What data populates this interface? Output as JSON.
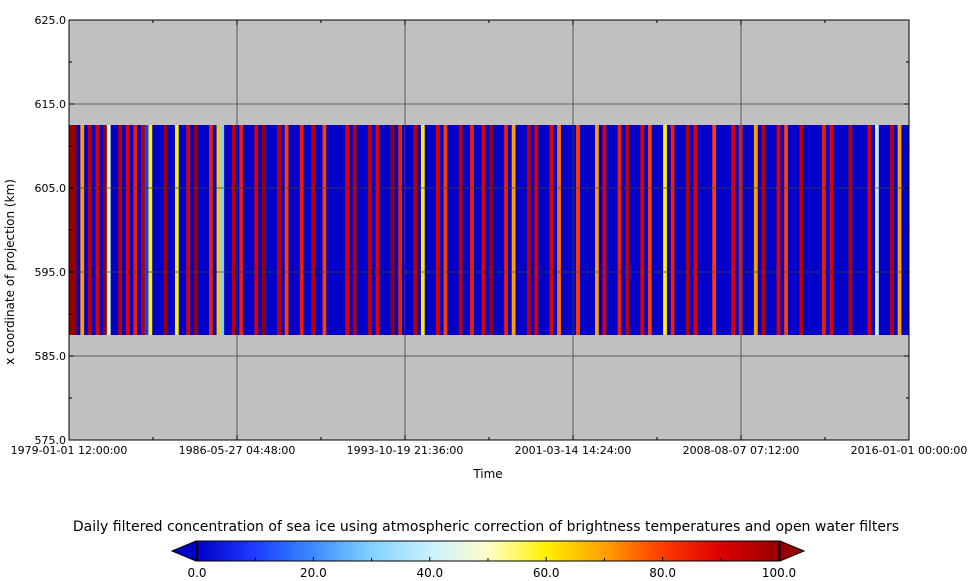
{
  "chart_data": {
    "type": "heatmap",
    "title": "",
    "xlabel": "Time",
    "ylabel": "x coordinate of projection (km)",
    "x_tick_labels": [
      "1979-01-01 12:00:00",
      "1986-05-27 04:48:00",
      "1993-10-19 21:36:00",
      "2001-03-14 14:24:00",
      "2008-08-07 07:12:00",
      "2016-01-01 00:00:00"
    ],
    "y_tick_labels": [
      "575.0",
      "585.0",
      "595.0",
      "605.0",
      "615.0",
      "625.0"
    ],
    "xlim": [
      "1979-01-01 12:00:00",
      "2016-01-01 00:00:00"
    ],
    "ylim": [
      575.0,
      625.0
    ],
    "data_extent_y": [
      587.5,
      612.5
    ],
    "grid": true,
    "background_color": "#c0c0c0",
    "colorbar": {
      "title": "Daily filtered concentration of sea ice using atmospheric correction of brightness temperatures and open water filters",
      "tick_labels": [
        "0.0",
        "20.0",
        "40.0",
        "60.0",
        "80.0",
        "100.0"
      ],
      "range": [
        0.0,
        100.0
      ],
      "extend": "both",
      "colors": [
        "#0000c8",
        "#1e3cff",
        "#3c8cff",
        "#82d2ff",
        "#c8f0ff",
        "#ffffc8",
        "#fff000",
        "#ffa000",
        "#ff3c00",
        "#dc0000",
        "#960000"
      ]
    },
    "approximate_yearly_concentration": [
      {
        "year": 1979,
        "pattern": [
          100,
          100,
          0,
          70,
          0,
          95
        ]
      },
      {
        "year": 1980,
        "pattern": [
          0,
          90,
          0,
          100,
          45,
          0
        ]
      },
      {
        "year": 1981,
        "pattern": [
          0,
          95,
          0,
          90,
          0,
          85
        ]
      },
      {
        "year": 1982,
        "pattern": [
          0,
          95,
          10,
          60,
          0,
          0
        ]
      },
      {
        "year": 1983,
        "pattern": [
          0,
          100,
          0,
          0,
          60,
          0
        ]
      },
      {
        "year": 1984,
        "pattern": [
          0,
          90,
          0,
          100,
          0,
          0
        ]
      },
      {
        "year": 1985,
        "pattern": [
          0,
          85,
          0,
          65,
          30,
          0
        ]
      },
      {
        "year": 1986,
        "pattern": [
          0,
          95,
          0,
          85,
          0,
          0
        ]
      },
      {
        "year": 1987,
        "pattern": [
          0,
          90,
          0,
          100,
          0,
          0
        ]
      },
      {
        "year": 1988,
        "pattern": [
          0,
          95,
          0,
          80,
          0,
          0
        ]
      },
      {
        "year": 1989,
        "pattern": [
          0,
          85,
          0,
          0,
          95,
          0
        ]
      },
      {
        "year": 1990,
        "pattern": [
          0,
          80,
          0,
          0,
          0,
          0
        ]
      },
      {
        "year": 1991,
        "pattern": [
          0,
          90,
          0,
          95,
          0,
          0
        ]
      },
      {
        "year": 1992,
        "pattern": [
          0,
          95,
          0,
          90,
          0,
          0
        ]
      },
      {
        "year": 1993,
        "pattern": [
          0,
          100,
          0,
          85,
          0,
          0
        ]
      },
      {
        "year": 1994,
        "pattern": [
          0,
          95,
          0,
          60,
          0,
          0
        ]
      },
      {
        "year": 1995,
        "pattern": [
          0,
          90,
          0,
          80,
          0,
          0
        ]
      },
      {
        "year": 1996,
        "pattern": [
          0,
          95,
          0,
          0,
          85,
          0
        ]
      },
      {
        "year": 1997,
        "pattern": [
          0,
          90,
          0,
          100,
          0,
          0
        ]
      },
      {
        "year": 1998,
        "pattern": [
          0,
          85,
          0,
          70,
          0,
          0
        ]
      },
      {
        "year": 1999,
        "pattern": [
          0,
          95,
          0,
          90,
          0,
          0
        ]
      },
      {
        "year": 2000,
        "pattern": [
          0,
          90,
          0,
          75,
          0,
          0
        ]
      },
      {
        "year": 2001,
        "pattern": [
          0,
          0,
          80,
          0,
          0,
          0
        ]
      },
      {
        "year": 2002,
        "pattern": [
          0,
          70,
          0,
          90,
          0,
          0
        ]
      },
      {
        "year": 2003,
        "pattern": [
          0,
          85,
          0,
          95,
          0,
          0
        ]
      },
      {
        "year": 2004,
        "pattern": [
          0,
          90,
          0,
          80,
          0,
          0
        ]
      },
      {
        "year": 2005,
        "pattern": [
          0,
          60,
          0,
          85,
          0,
          0
        ]
      },
      {
        "year": 2006,
        "pattern": [
          0,
          95,
          0,
          90,
          0,
          0
        ]
      },
      {
        "year": 2007,
        "pattern": [
          0,
          0,
          80,
          0,
          0,
          0
        ]
      },
      {
        "year": 2008,
        "pattern": [
          0,
          90,
          0,
          85,
          0,
          0
        ]
      },
      {
        "year": 2009,
        "pattern": [
          0,
          70,
          0,
          95,
          0,
          0
        ]
      },
      {
        "year": 2010,
        "pattern": [
          0,
          90,
          0,
          80,
          0,
          0
        ]
      },
      {
        "year": 2011,
        "pattern": [
          0,
          95,
          0,
          0,
          0,
          0
        ]
      },
      {
        "year": 2012,
        "pattern": [
          0,
          85,
          0,
          90,
          0,
          0
        ]
      },
      {
        "year": 2013,
        "pattern": [
          0,
          0,
          95,
          0,
          0,
          0
        ]
      },
      {
        "year": 2014,
        "pattern": [
          0,
          90,
          0,
          40,
          0,
          0
        ]
      },
      {
        "year": 2015,
        "pattern": [
          0,
          95,
          0,
          70,
          0,
          0
        ]
      }
    ]
  }
}
